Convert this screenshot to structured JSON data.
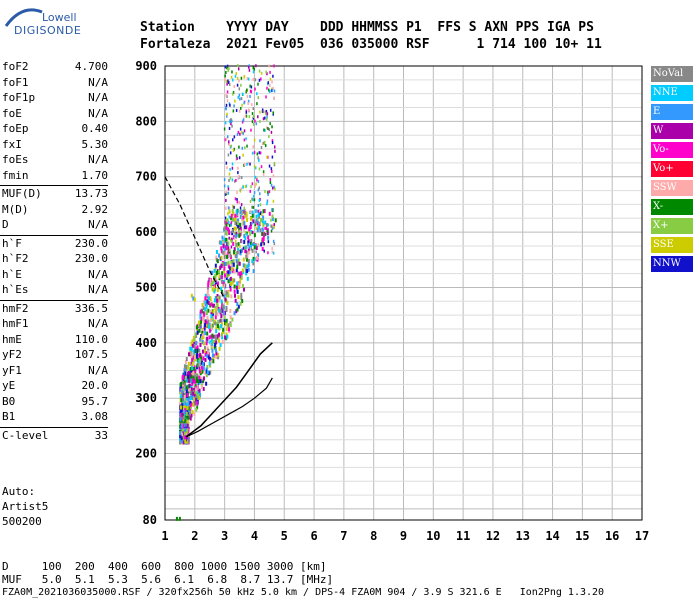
{
  "logo": {
    "top": "Lowell",
    "bottom": "DIGISONDE"
  },
  "header": {
    "line1": "Station    YYYY DAY    DDD HHMMSS P1  FFS S AXN PPS IGA PS",
    "line2": "Fortaleza  2021 Fev05  036 035000 RSF      1 714 100 10+ 11"
  },
  "params": [
    {
      "name": "foF2",
      "value": "4.700"
    },
    {
      "name": "foF1",
      "value": "N/A"
    },
    {
      "name": "foF1p",
      "value": "N/A"
    },
    {
      "name": "foE",
      "value": "N/A"
    },
    {
      "name": "foEp",
      "value": "0.40"
    },
    {
      "name": "fxI",
      "value": "5.30"
    },
    {
      "name": "foEs",
      "value": "N/A"
    },
    {
      "name": "fmin",
      "value": "1.70"
    },
    {
      "name": "MUF(D)",
      "value": "13.73"
    },
    {
      "name": "M(D)",
      "value": "2.92"
    },
    {
      "name": "D",
      "value": "N/A"
    },
    {
      "name": "h`F",
      "value": "230.0"
    },
    {
      "name": "h`F2",
      "value": "230.0"
    },
    {
      "name": "h`E",
      "value": "N/A"
    },
    {
      "name": "h`Es",
      "value": "N/A"
    },
    {
      "name": "hmF2",
      "value": "336.5"
    },
    {
      "name": "hmF1",
      "value": "N/A"
    },
    {
      "name": "hmE",
      "value": "110.0"
    },
    {
      "name": "yF2",
      "value": "107.5"
    },
    {
      "name": "yF1",
      "value": "N/A"
    },
    {
      "name": "yE",
      "value": "20.0"
    },
    {
      "name": "B0",
      "value": "95.7"
    },
    {
      "name": "B1",
      "value": "3.08"
    },
    {
      "name": "C-level",
      "value": "33"
    }
  ],
  "auto": {
    "line1": "Auto:",
    "line2": "Artist5",
    "line3": "500200"
  },
  "legend": [
    {
      "label": "NoVal",
      "color": "#888888"
    },
    {
      "label": "NNE",
      "color": "#00ccff"
    },
    {
      "label": "E",
      "color": "#3399ff"
    },
    {
      "label": "W",
      "color": "#aa00aa"
    },
    {
      "label": "Vo-",
      "color": "#ff00cc"
    },
    {
      "label": "Vo+",
      "color": "#ff0033"
    },
    {
      "label": "SSW",
      "color": "#ffaaaa"
    },
    {
      "label": "X-",
      "color": "#008800"
    },
    {
      "label": "X+",
      "color": "#88cc44"
    },
    {
      "label": "SSE",
      "color": "#cccc00"
    },
    {
      "label": "NNW",
      "color": "#1111cc"
    }
  ],
  "bottom": {
    "d_line": "D     100  200  400  600  800 1000 1500 3000 [km]",
    "muf_line": "MUF   5.0  5.1  5.3  5.6  6.1  6.8  8.7 13.7 [MHz]",
    "footer": "FZA0M_2021036035000.RSF / 320fx256h 50 kHz 5.0 km / DPS-4 FZA0M 904 / 3.9 S 321.6 E   Ion2Png 1.3.20"
  },
  "chart_data": {
    "type": "scatter",
    "xlim": [
      1,
      17
    ],
    "ylim": [
      80,
      900
    ],
    "xticks": [
      1,
      2,
      3,
      4,
      5,
      6,
      7,
      8,
      9,
      10,
      11,
      12,
      13,
      14,
      15,
      16,
      17
    ],
    "yticks": [
      80,
      200,
      300,
      400,
      500,
      600,
      700,
      800,
      900
    ],
    "grid": true,
    "legend_position": "right",
    "profile_curve": [
      [
        1.7,
        230
      ],
      [
        2.1,
        240
      ],
      [
        2.6,
        255
      ],
      [
        3.1,
        270
      ],
      [
        3.6,
        285
      ],
      [
        4.0,
        300
      ],
      [
        4.4,
        318
      ],
      [
        4.6,
        336.5
      ]
    ],
    "trace_line": [
      [
        1.7,
        230
      ],
      [
        2.2,
        250
      ],
      [
        2.8,
        285
      ],
      [
        3.4,
        320
      ],
      [
        3.8,
        350
      ],
      [
        4.2,
        380
      ],
      [
        4.6,
        400
      ]
    ],
    "dashed_line": [
      [
        1.0,
        700
      ],
      [
        1.5,
        650
      ],
      [
        2.0,
        590
      ],
      [
        2.5,
        530
      ],
      [
        3.0,
        480
      ]
    ],
    "cluster_colors": [
      "#ff00cc",
      "#aa00aa",
      "#008800",
      "#1111cc",
      "#3399ff",
      "#ffaaaa",
      "#88cc44",
      "#cccc00",
      "#888888",
      "#00ccff"
    ]
  }
}
